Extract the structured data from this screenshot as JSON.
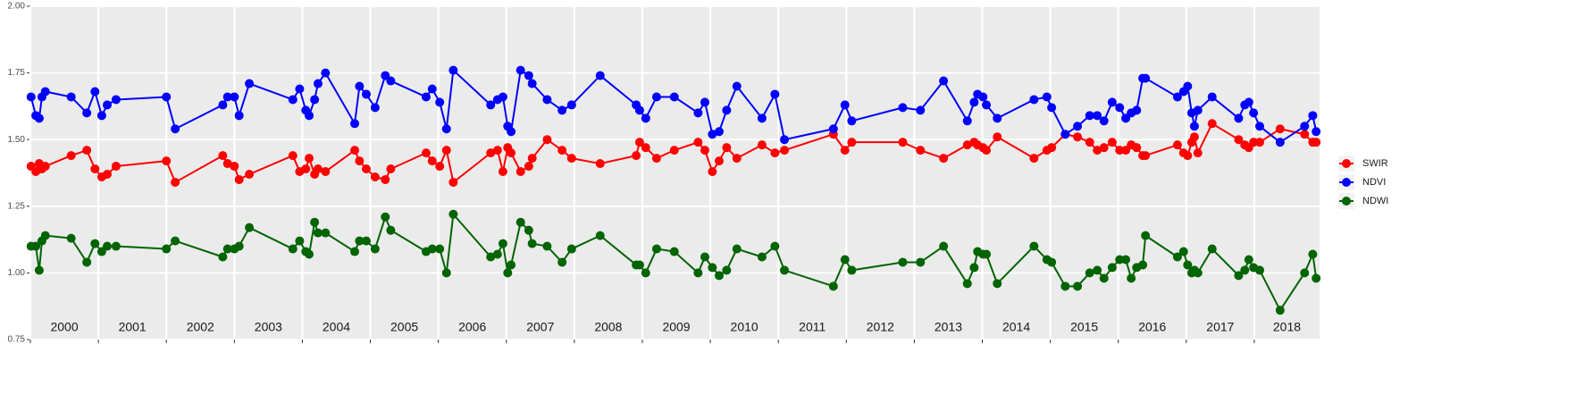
{
  "chart_data": {
    "type": "line",
    "x": [
      2000.01,
      2000.08,
      2000.13,
      2000.17,
      2000.22,
      2000.6,
      2000.83,
      2000.95,
      2001.05,
      2001.13,
      2001.26,
      2002.0,
      2002.13,
      2002.83,
      2002.9,
      2003.0,
      2003.07,
      2003.22,
      2003.86,
      2003.96,
      2004.05,
      2004.1,
      2004.18,
      2004.23,
      2004.34,
      2004.77,
      2004.84,
      2004.94,
      2005.07,
      2005.22,
      2005.3,
      2005.82,
      2005.91,
      2006.02,
      2006.12,
      2006.22,
      2006.77,
      2006.87,
      2006.95,
      2007.02,
      2007.07,
      2007.21,
      2007.33,
      2007.38,
      2007.6,
      2007.82,
      2007.96,
      2008.38,
      2008.91,
      2008.96,
      2009.05,
      2009.21,
      2009.47,
      2009.82,
      2009.92,
      2010.03,
      2010.13,
      2010.24,
      2010.39,
      2010.76,
      2010.95,
      2011.09,
      2011.81,
      2011.98,
      2012.08,
      2012.83,
      2013.09,
      2013.43,
      2013.78,
      2013.88,
      2013.93,
      2014.01,
      2014.06,
      2014.22,
      2014.76,
      2014.95,
      2015.02,
      2015.22,
      2015.4,
      2015.58,
      2015.69,
      2015.79,
      2015.91,
      2016.02,
      2016.11,
      2016.19,
      2016.27,
      2016.36,
      2016.4,
      2016.87,
      2016.96,
      2017.02,
      2017.08,
      2017.12,
      2017.17,
      2017.38,
      2017.77,
      2017.86,
      2017.92,
      2017.99,
      2018.08,
      2018.38,
      2018.74,
      2018.86,
      2018.91
    ],
    "series": [
      {
        "name": "SWIR",
        "color": "#ff0000",
        "values": [
          1.4,
          1.38,
          1.41,
          1.39,
          1.4,
          1.44,
          1.46,
          1.39,
          1.36,
          1.37,
          1.4,
          1.42,
          1.34,
          1.44,
          1.41,
          1.4,
          1.35,
          1.37,
          1.44,
          1.38,
          1.39,
          1.43,
          1.37,
          1.39,
          1.38,
          1.46,
          1.42,
          1.39,
          1.36,
          1.35,
          1.39,
          1.45,
          1.42,
          1.4,
          1.46,
          1.34,
          1.45,
          1.46,
          1.38,
          1.47,
          1.45,
          1.38,
          1.4,
          1.43,
          1.5,
          1.46,
          1.43,
          1.41,
          1.44,
          1.49,
          1.47,
          1.43,
          1.46,
          1.49,
          1.46,
          1.38,
          1.42,
          1.47,
          1.43,
          1.48,
          1.45,
          1.46,
          1.52,
          1.46,
          1.49,
          1.49,
          1.46,
          1.43,
          1.48,
          1.49,
          1.48,
          1.47,
          1.46,
          1.51,
          1.43,
          1.46,
          1.47,
          1.52,
          1.51,
          1.49,
          1.46,
          1.47,
          1.49,
          1.46,
          1.46,
          1.48,
          1.47,
          1.44,
          1.44,
          1.48,
          1.45,
          1.44,
          1.49,
          1.51,
          1.45,
          1.56,
          1.5,
          1.48,
          1.47,
          1.49,
          1.49,
          1.54,
          1.52,
          1.49,
          1.49
        ]
      },
      {
        "name": "NDVI",
        "color": "#0000ff",
        "values": [
          1.66,
          1.59,
          1.58,
          1.66,
          1.68,
          1.66,
          1.6,
          1.68,
          1.59,
          1.63,
          1.65,
          1.66,
          1.54,
          1.63,
          1.66,
          1.66,
          1.59,
          1.71,
          1.65,
          1.69,
          1.61,
          1.59,
          1.65,
          1.71,
          1.75,
          1.56,
          1.7,
          1.67,
          1.62,
          1.74,
          1.72,
          1.66,
          1.69,
          1.64,
          1.54,
          1.76,
          1.63,
          1.65,
          1.66,
          1.55,
          1.53,
          1.76,
          1.74,
          1.71,
          1.65,
          1.61,
          1.63,
          1.74,
          1.63,
          1.61,
          1.58,
          1.66,
          1.66,
          1.6,
          1.64,
          1.52,
          1.53,
          1.61,
          1.7,
          1.58,
          1.67,
          1.5,
          1.54,
          1.63,
          1.57,
          1.62,
          1.61,
          1.72,
          1.57,
          1.64,
          1.67,
          1.66,
          1.63,
          1.58,
          1.65,
          1.66,
          1.62,
          1.52,
          1.55,
          1.59,
          1.59,
          1.57,
          1.64,
          1.62,
          1.58,
          1.6,
          1.61,
          1.73,
          1.73,
          1.66,
          1.68,
          1.7,
          1.6,
          1.55,
          1.61,
          1.66,
          1.58,
          1.63,
          1.64,
          1.6,
          1.55,
          1.49,
          1.55,
          1.59,
          1.53
        ]
      },
      {
        "name": "NDWI",
        "color": "#006400",
        "values": [
          1.1,
          1.1,
          1.01,
          1.12,
          1.14,
          1.13,
          1.04,
          1.11,
          1.08,
          1.1,
          1.1,
          1.09,
          1.12,
          1.06,
          1.09,
          1.09,
          1.1,
          1.17,
          1.09,
          1.12,
          1.08,
          1.07,
          1.19,
          1.15,
          1.15,
          1.08,
          1.12,
          1.12,
          1.09,
          1.21,
          1.16,
          1.08,
          1.09,
          1.09,
          1.0,
          1.22,
          1.06,
          1.07,
          1.11,
          1.0,
          1.03,
          1.19,
          1.16,
          1.11,
          1.1,
          1.04,
          1.09,
          1.14,
          1.03,
          1.03,
          1.0,
          1.09,
          1.08,
          1.0,
          1.06,
          1.02,
          0.99,
          1.01,
          1.09,
          1.06,
          1.1,
          1.01,
          0.95,
          1.05,
          1.01,
          1.04,
          1.04,
          1.1,
          0.96,
          1.02,
          1.08,
          1.07,
          1.07,
          0.96,
          1.1,
          1.05,
          1.04,
          0.95,
          0.95,
          1.0,
          1.01,
          0.98,
          1.02,
          1.05,
          1.05,
          0.98,
          1.02,
          1.03,
          1.14,
          1.06,
          1.08,
          1.03,
          1.0,
          1.01,
          1.0,
          1.09,
          0.99,
          1.01,
          1.05,
          1.02,
          1.01,
          0.86,
          1.0,
          1.07,
          0.98
        ]
      }
    ],
    "xlim": [
      2000,
      2018.96
    ],
    "xticks": [
      2000,
      2001,
      2002,
      2003,
      2004,
      2005,
      2006,
      2007,
      2008,
      2009,
      2010,
      2011,
      2012,
      2013,
      2014,
      2015,
      2016,
      2017,
      2018
    ],
    "ylim": [
      0.75,
      2.0
    ],
    "yticks": [
      {
        "value": 0.75,
        "label": "0.75"
      },
      {
        "value": 1.0,
        "label": "1.00"
      },
      {
        "value": 1.25,
        "label": "1.25"
      },
      {
        "value": 1.5,
        "label": "1.50"
      },
      {
        "value": 1.75,
        "label": "1.75"
      },
      {
        "value": 2.0,
        "label": "2.00"
      }
    ],
    "grid": true,
    "legend": "right"
  }
}
